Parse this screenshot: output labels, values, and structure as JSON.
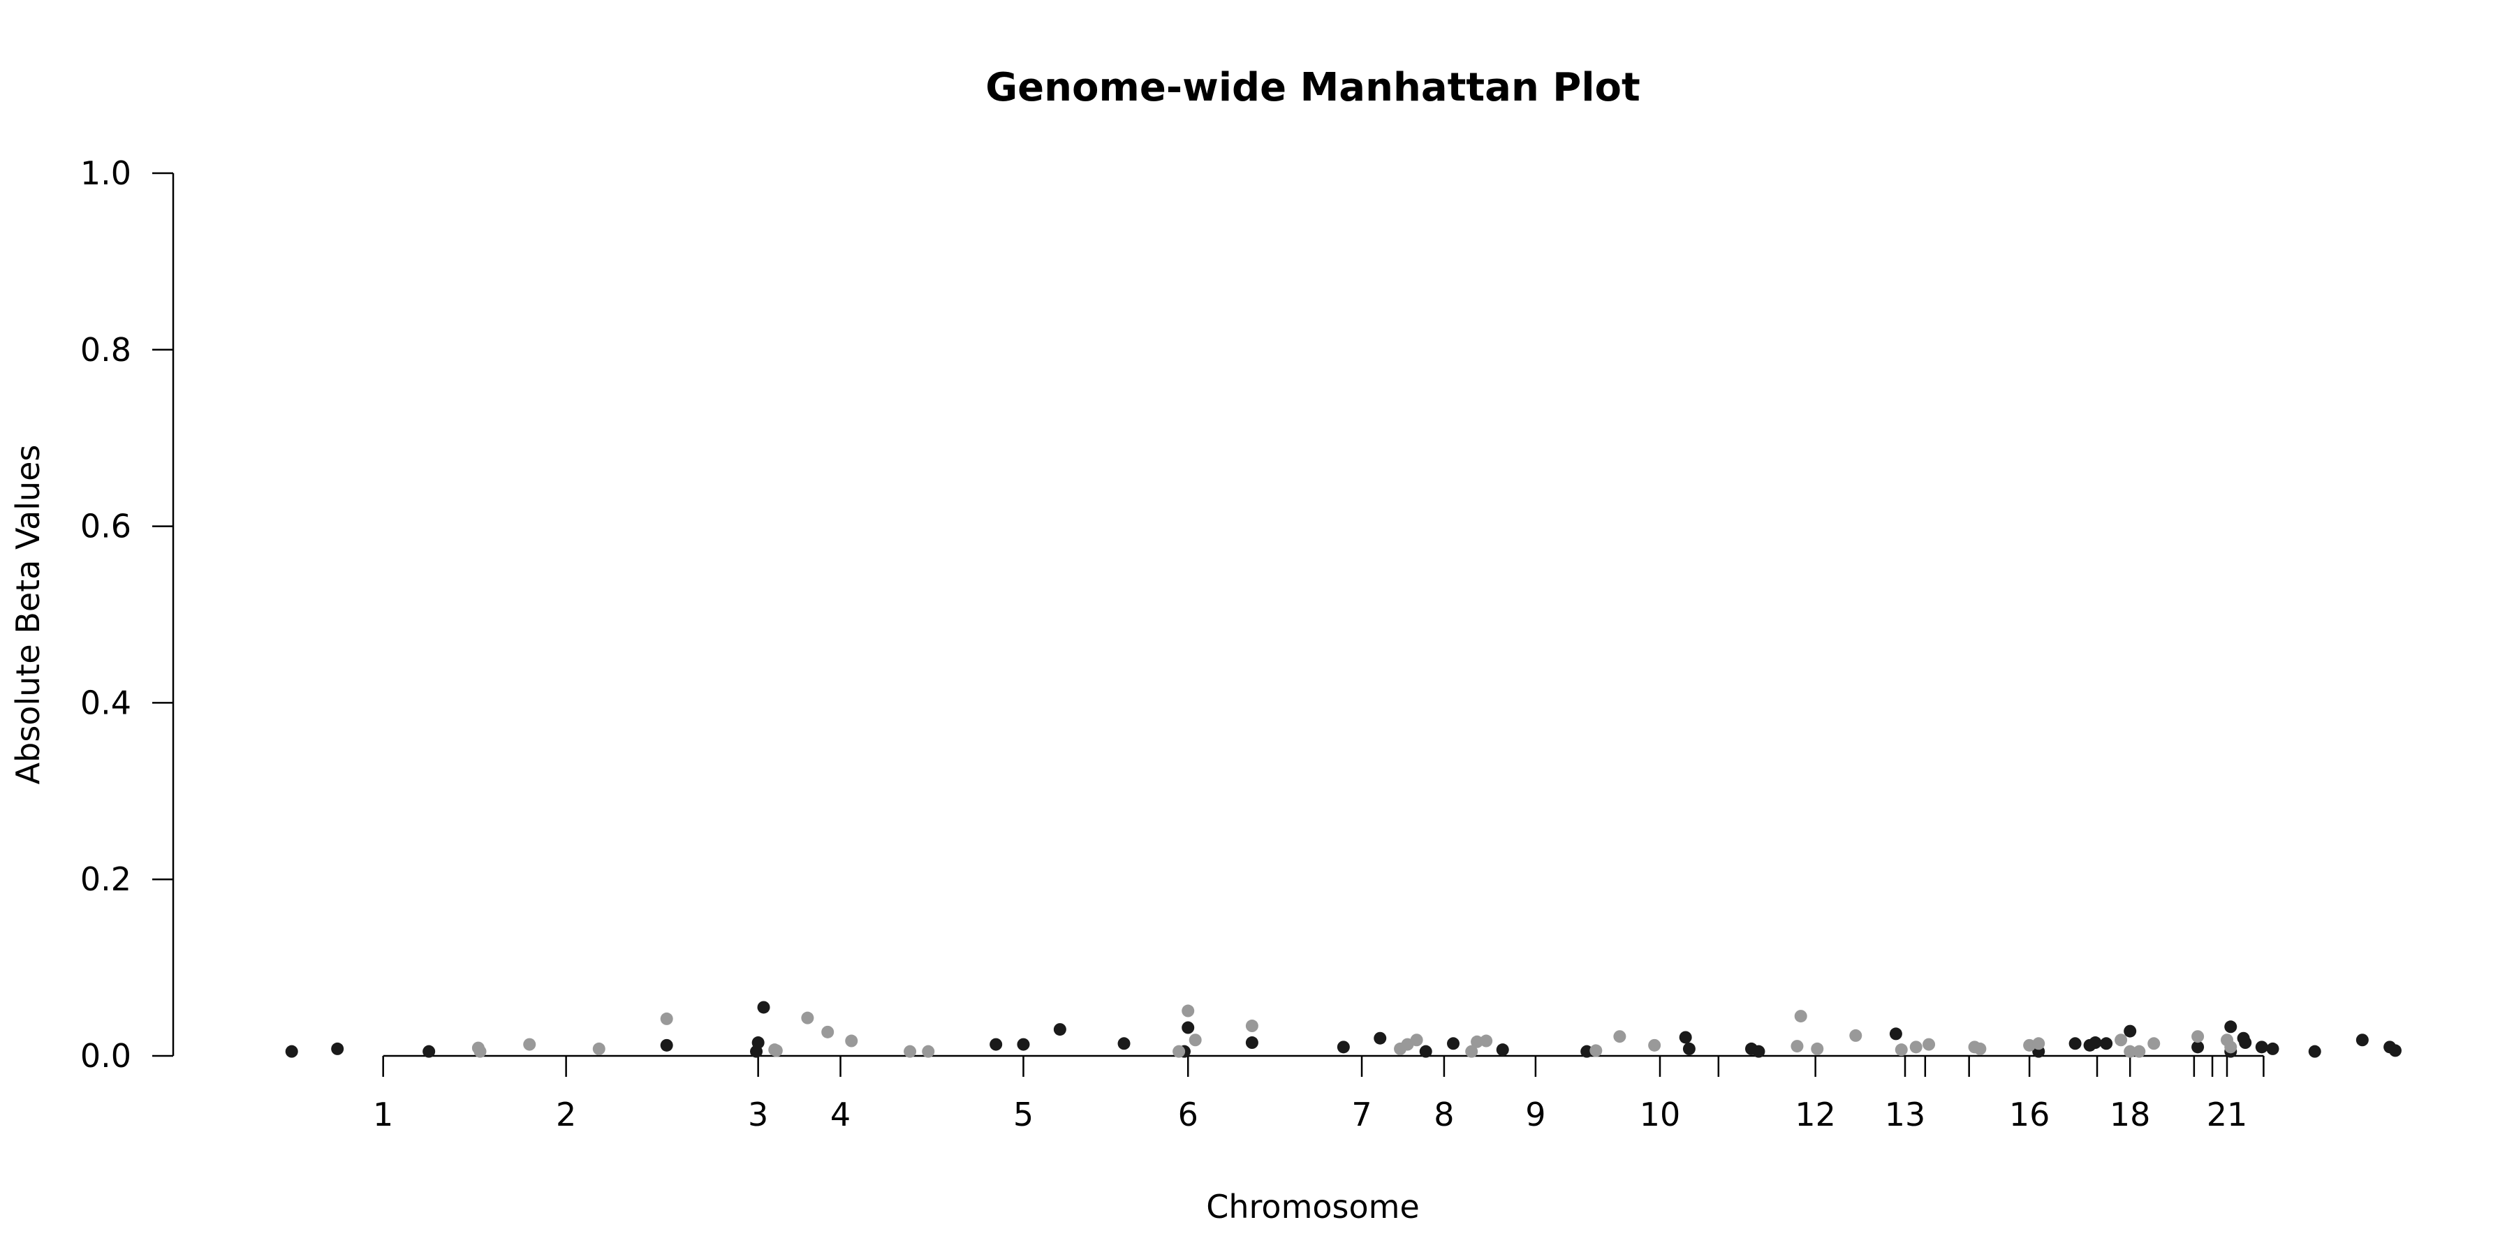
{
  "chart_data": {
    "type": "scatter",
    "title": "Genome-wide Manhattan Plot",
    "xlabel": "Chromosome",
    "ylabel": "Absolute Beta Values",
    "ylim": [
      0,
      1.0
    ],
    "xlim": [
      0.44,
      12.0
    ],
    "yticks": [
      "0.0",
      "0.2",
      "0.4",
      "0.6",
      "0.8",
      "1.0"
    ],
    "xticks": [
      {
        "label": "1",
        "x": 1.0
      },
      {
        "label": "2",
        "x": 2.0
      },
      {
        "label": "3",
        "x": 3.05
      },
      {
        "label": "4",
        "x": 3.5
      },
      {
        "label": "5",
        "x": 4.5
      },
      {
        "label": "6",
        "x": 5.4
      },
      {
        "label": "7",
        "x": 6.35
      },
      {
        "label": "8",
        "x": 6.8
      },
      {
        "label": "9",
        "x": 7.3
      },
      {
        "label": "10",
        "x": 7.98
      },
      {
        "label": "",
        "x": 8.3
      },
      {
        "label": "12",
        "x": 8.83
      },
      {
        "label": "13",
        "x": 9.32
      },
      {
        "label": "",
        "x": 9.43
      },
      {
        "label": "",
        "x": 9.67
      },
      {
        "label": "16",
        "x": 10.0
      },
      {
        "label": "",
        "x": 10.37
      },
      {
        "label": "18",
        "x": 10.55
      },
      {
        "label": "",
        "x": 10.9
      },
      {
        "label": "",
        "x": 11.0
      },
      {
        "label": "21",
        "x": 11.08
      },
      {
        "label": "",
        "x": 11.28
      }
    ],
    "colors": {
      "dark": "#1a1a1a",
      "light": "#999999"
    },
    "series": [
      {
        "color": "dark",
        "points": [
          [
            0.5,
            0.005
          ],
          [
            0.75,
            0.008
          ],
          [
            1.25,
            0.005
          ],
          [
            2.55,
            0.012
          ],
          [
            3.04,
            0.005
          ],
          [
            3.05,
            0.015
          ],
          [
            3.08,
            0.055
          ],
          [
            4.35,
            0.013
          ],
          [
            4.5,
            0.013
          ],
          [
            4.7,
            0.03
          ],
          [
            5.05,
            0.014
          ],
          [
            5.38,
            0.005
          ],
          [
            5.4,
            0.032
          ],
          [
            5.75,
            0.015
          ],
          [
            6.25,
            0.01
          ],
          [
            6.45,
            0.02
          ],
          [
            6.7,
            0.005
          ],
          [
            6.85,
            0.014
          ],
          [
            7.12,
            0.007
          ],
          [
            7.58,
            0.005
          ],
          [
            8.12,
            0.021
          ],
          [
            8.14,
            0.008
          ],
          [
            8.48,
            0.008
          ],
          [
            8.52,
            0.005
          ],
          [
            9.27,
            0.025
          ],
          [
            10.05,
            0.005
          ],
          [
            10.25,
            0.014
          ],
          [
            10.33,
            0.012
          ],
          [
            10.36,
            0.015
          ],
          [
            10.42,
            0.014
          ],
          [
            10.55,
            0.028
          ],
          [
            10.92,
            0.01
          ],
          [
            11.1,
            0.033
          ],
          [
            11.1,
            0.005
          ],
          [
            11.17,
            0.02
          ],
          [
            11.18,
            0.015
          ],
          [
            11.27,
            0.01
          ],
          [
            11.33,
            0.008
          ],
          [
            11.56,
            0.005
          ],
          [
            11.82,
            0.018
          ],
          [
            11.97,
            0.01
          ],
          [
            12.0,
            0.006
          ]
        ]
      },
      {
        "color": "light",
        "points": [
          [
            1.52,
            0.009
          ],
          [
            1.53,
            0.005
          ],
          [
            1.8,
            0.013
          ],
          [
            2.18,
            0.008
          ],
          [
            2.55,
            0.042
          ],
          [
            3.14,
            0.007
          ],
          [
            3.15,
            0.006
          ],
          [
            3.32,
            0.043
          ],
          [
            3.43,
            0.027
          ],
          [
            3.56,
            0.017
          ],
          [
            3.88,
            0.005
          ],
          [
            3.98,
            0.005
          ],
          [
            5.4,
            0.051
          ],
          [
            5.35,
            0.005
          ],
          [
            5.44,
            0.018
          ],
          [
            5.75,
            0.034
          ],
          [
            6.56,
            0.008
          ],
          [
            6.6,
            0.013
          ],
          [
            6.65,
            0.018
          ],
          [
            6.95,
            0.005
          ],
          [
            6.98,
            0.016
          ],
          [
            7.03,
            0.017
          ],
          [
            7.63,
            0.006
          ],
          [
            7.76,
            0.022
          ],
          [
            7.95,
            0.012
          ],
          [
            8.75,
            0.045
          ],
          [
            8.73,
            0.011
          ],
          [
            8.84,
            0.008
          ],
          [
            9.05,
            0.023
          ],
          [
            9.3,
            0.007
          ],
          [
            9.38,
            0.01
          ],
          [
            9.45,
            0.013
          ],
          [
            9.7,
            0.01
          ],
          [
            9.73,
            0.008
          ],
          [
            10.0,
            0.012
          ],
          [
            10.05,
            0.014
          ],
          [
            10.5,
            0.018
          ],
          [
            10.55,
            0.005
          ],
          [
            10.6,
            0.005
          ],
          [
            10.68,
            0.014
          ],
          [
            10.92,
            0.022
          ],
          [
            11.08,
            0.018
          ],
          [
            11.1,
            0.01
          ]
        ]
      }
    ]
  }
}
